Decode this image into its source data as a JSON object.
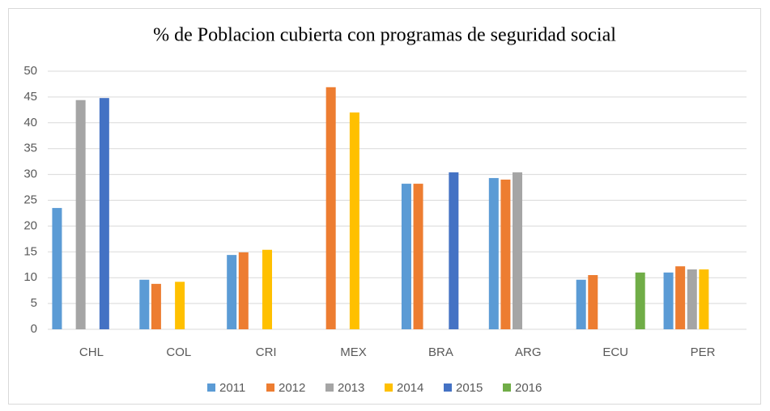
{
  "chart_data": {
    "type": "bar",
    "title": "% de Poblacion cubierta con programas de seguridad social",
    "categories": [
      "CHL",
      "COL",
      "CRI",
      "MEX",
      "BRA",
      "ARG",
      "ECU",
      "PER"
    ],
    "series": [
      {
        "name": "2011",
        "color": "#5b9bd5",
        "values": [
          23.5,
          9.6,
          14.4,
          null,
          28.2,
          29.3,
          9.6,
          11
        ]
      },
      {
        "name": "2012",
        "color": "#ed7d31",
        "values": [
          null,
          8.8,
          14.9,
          46.9,
          28.2,
          29,
          10.5,
          12.2
        ]
      },
      {
        "name": "2013",
        "color": "#a5a5a5",
        "values": [
          44.4,
          null,
          null,
          null,
          null,
          30.4,
          null,
          11.6
        ]
      },
      {
        "name": "2014",
        "color": "#ffc000",
        "values": [
          null,
          9.2,
          15.4,
          42,
          null,
          null,
          null,
          11.6
        ]
      },
      {
        "name": "2015",
        "color": "#4472c4",
        "values": [
          44.8,
          null,
          null,
          null,
          30.4,
          null,
          null,
          null
        ]
      },
      {
        "name": "2016",
        "color": "#70ad47",
        "values": [
          null,
          null,
          null,
          null,
          null,
          null,
          11,
          null
        ]
      }
    ],
    "ylim": [
      0,
      50
    ],
    "yticks": [
      0,
      5,
      10,
      15,
      20,
      25,
      30,
      35,
      40,
      45,
      50
    ],
    "grid": true,
    "legend": "bottom"
  }
}
